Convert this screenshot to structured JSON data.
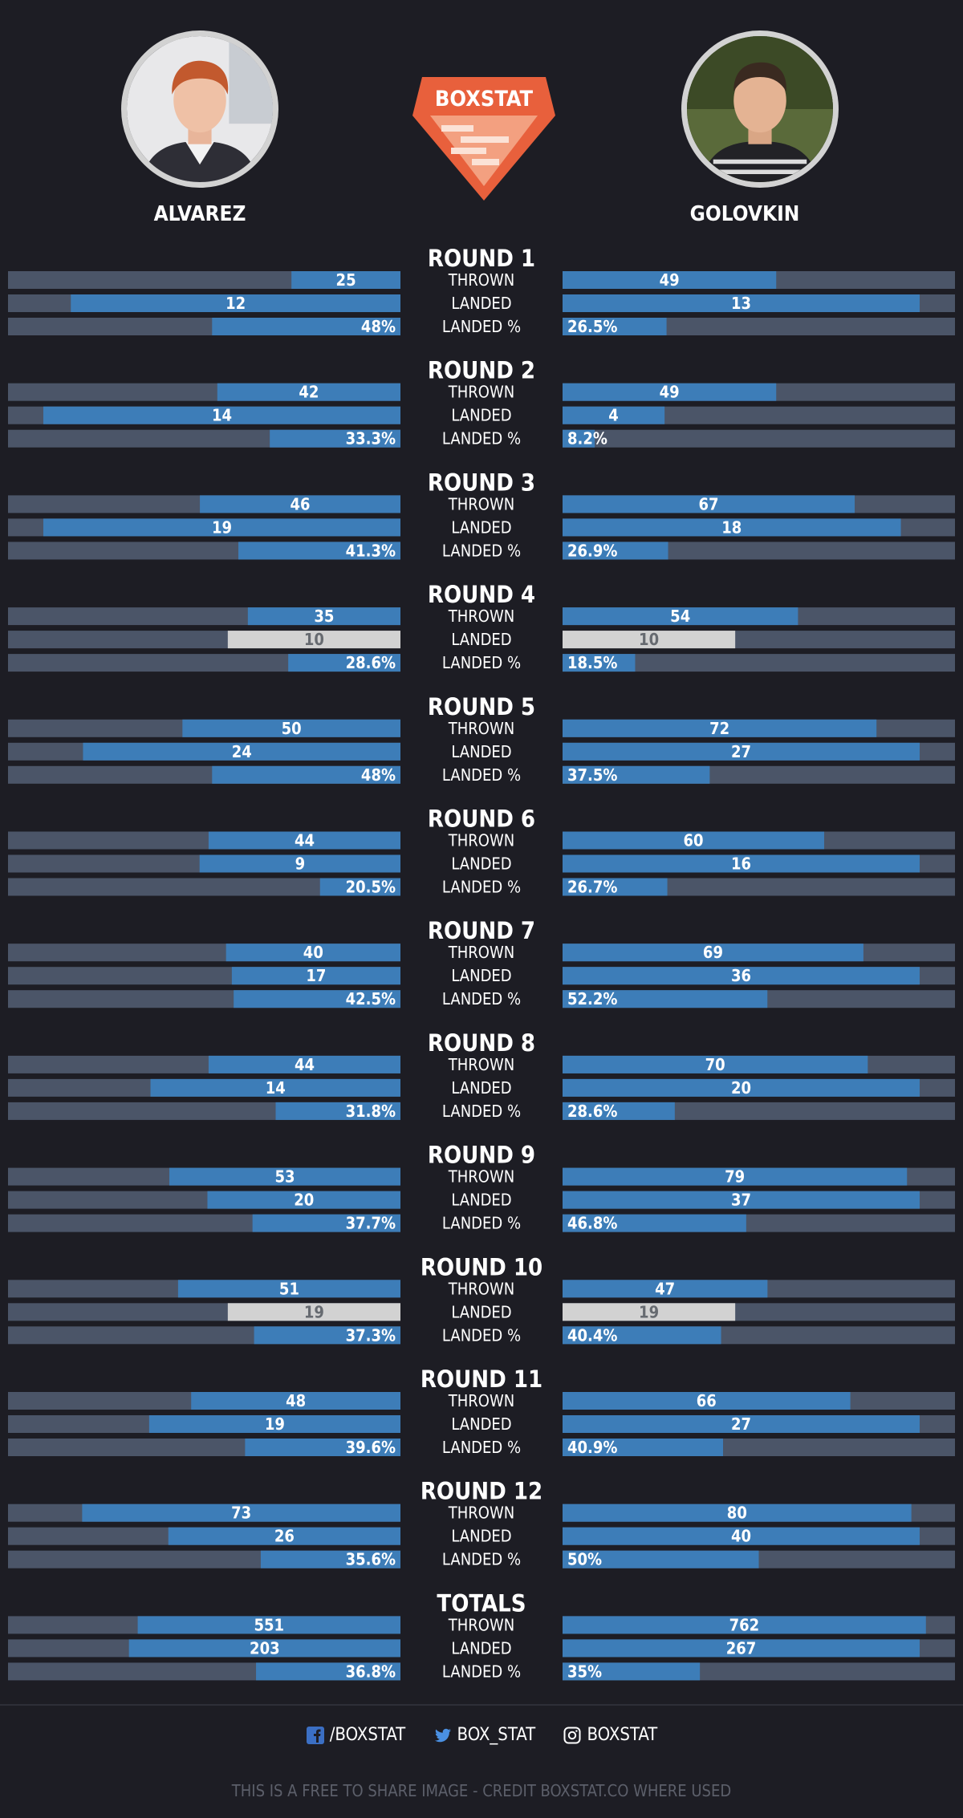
{
  "header": {
    "left_fighter": "ALVAREZ",
    "right_fighter": "GOLOVKIN",
    "logo_text": "BOXSTAT"
  },
  "metrics": [
    "THROWN",
    "LANDED",
    "LANDED %"
  ],
  "chart_data": {
    "type": "bar",
    "orientation": "horizontal-diverging",
    "series": [
      {
        "name": "ALVAREZ"
      },
      {
        "name": "GOLOVKIN"
      }
    ],
    "thrown_scale_max": 90,
    "rounds": [
      {
        "title": "ROUND 1",
        "left": {
          "thrown": 25,
          "landed": 12,
          "pct": "48%"
        },
        "right": {
          "thrown": 49,
          "landed": 13,
          "pct": "26.5%"
        }
      },
      {
        "title": "ROUND 2",
        "left": {
          "thrown": 42,
          "landed": 14,
          "pct": "33.3%"
        },
        "right": {
          "thrown": 49,
          "landed": 4,
          "pct": "8.2%"
        }
      },
      {
        "title": "ROUND 3",
        "left": {
          "thrown": 46,
          "landed": 19,
          "pct": "41.3%"
        },
        "right": {
          "thrown": 67,
          "landed": 18,
          "pct": "26.9%"
        }
      },
      {
        "title": "ROUND 4",
        "left": {
          "thrown": 35,
          "landed": 10,
          "pct": "28.6%"
        },
        "right": {
          "thrown": 54,
          "landed": 10,
          "pct": "18.5%"
        }
      },
      {
        "title": "ROUND 5",
        "left": {
          "thrown": 50,
          "landed": 24,
          "pct": "48%"
        },
        "right": {
          "thrown": 72,
          "landed": 27,
          "pct": "37.5%"
        }
      },
      {
        "title": "ROUND 6",
        "left": {
          "thrown": 44,
          "landed": 9,
          "pct": "20.5%"
        },
        "right": {
          "thrown": 60,
          "landed": 16,
          "pct": "26.7%"
        }
      },
      {
        "title": "ROUND 7",
        "left": {
          "thrown": 40,
          "landed": 17,
          "pct": "42.5%"
        },
        "right": {
          "thrown": 69,
          "landed": 36,
          "pct": "52.2%"
        }
      },
      {
        "title": "ROUND 8",
        "left": {
          "thrown": 44,
          "landed": 14,
          "pct": "31.8%"
        },
        "right": {
          "thrown": 70,
          "landed": 20,
          "pct": "28.6%"
        }
      },
      {
        "title": "ROUND 9",
        "left": {
          "thrown": 53,
          "landed": 20,
          "pct": "37.7%"
        },
        "right": {
          "thrown": 79,
          "landed": 37,
          "pct": "46.8%"
        }
      },
      {
        "title": "ROUND 10",
        "left": {
          "thrown": 51,
          "landed": 19,
          "pct": "37.3%"
        },
        "right": {
          "thrown": 47,
          "landed": 19,
          "pct": "40.4%"
        }
      },
      {
        "title": "ROUND 11",
        "left": {
          "thrown": 48,
          "landed": 19,
          "pct": "39.6%"
        },
        "right": {
          "thrown": 66,
          "landed": 27,
          "pct": "40.9%"
        }
      },
      {
        "title": "ROUND 12",
        "left": {
          "thrown": 73,
          "landed": 26,
          "pct": "35.6%"
        },
        "right": {
          "thrown": 80,
          "landed": 40,
          "pct": "50%"
        }
      },
      {
        "title": "TOTALS",
        "left": {
          "thrown": 551,
          "landed": 203,
          "pct": "36.8%"
        },
        "right": {
          "thrown": 762,
          "landed": 267,
          "pct": "35%"
        }
      }
    ],
    "colors": {
      "background": "#1d1d24",
      "track": "#4b5568",
      "fill": "#3d7db8",
      "tie": "#d2d2d2"
    }
  },
  "footer": {
    "facebook": "/BOXSTAT",
    "twitter": "BOX_STAT",
    "instagram": "BOXSTAT",
    "credit": "THIS IS A FREE TO SHARE IMAGE - CREDIT BOXSTAT.CO WHERE USED"
  }
}
